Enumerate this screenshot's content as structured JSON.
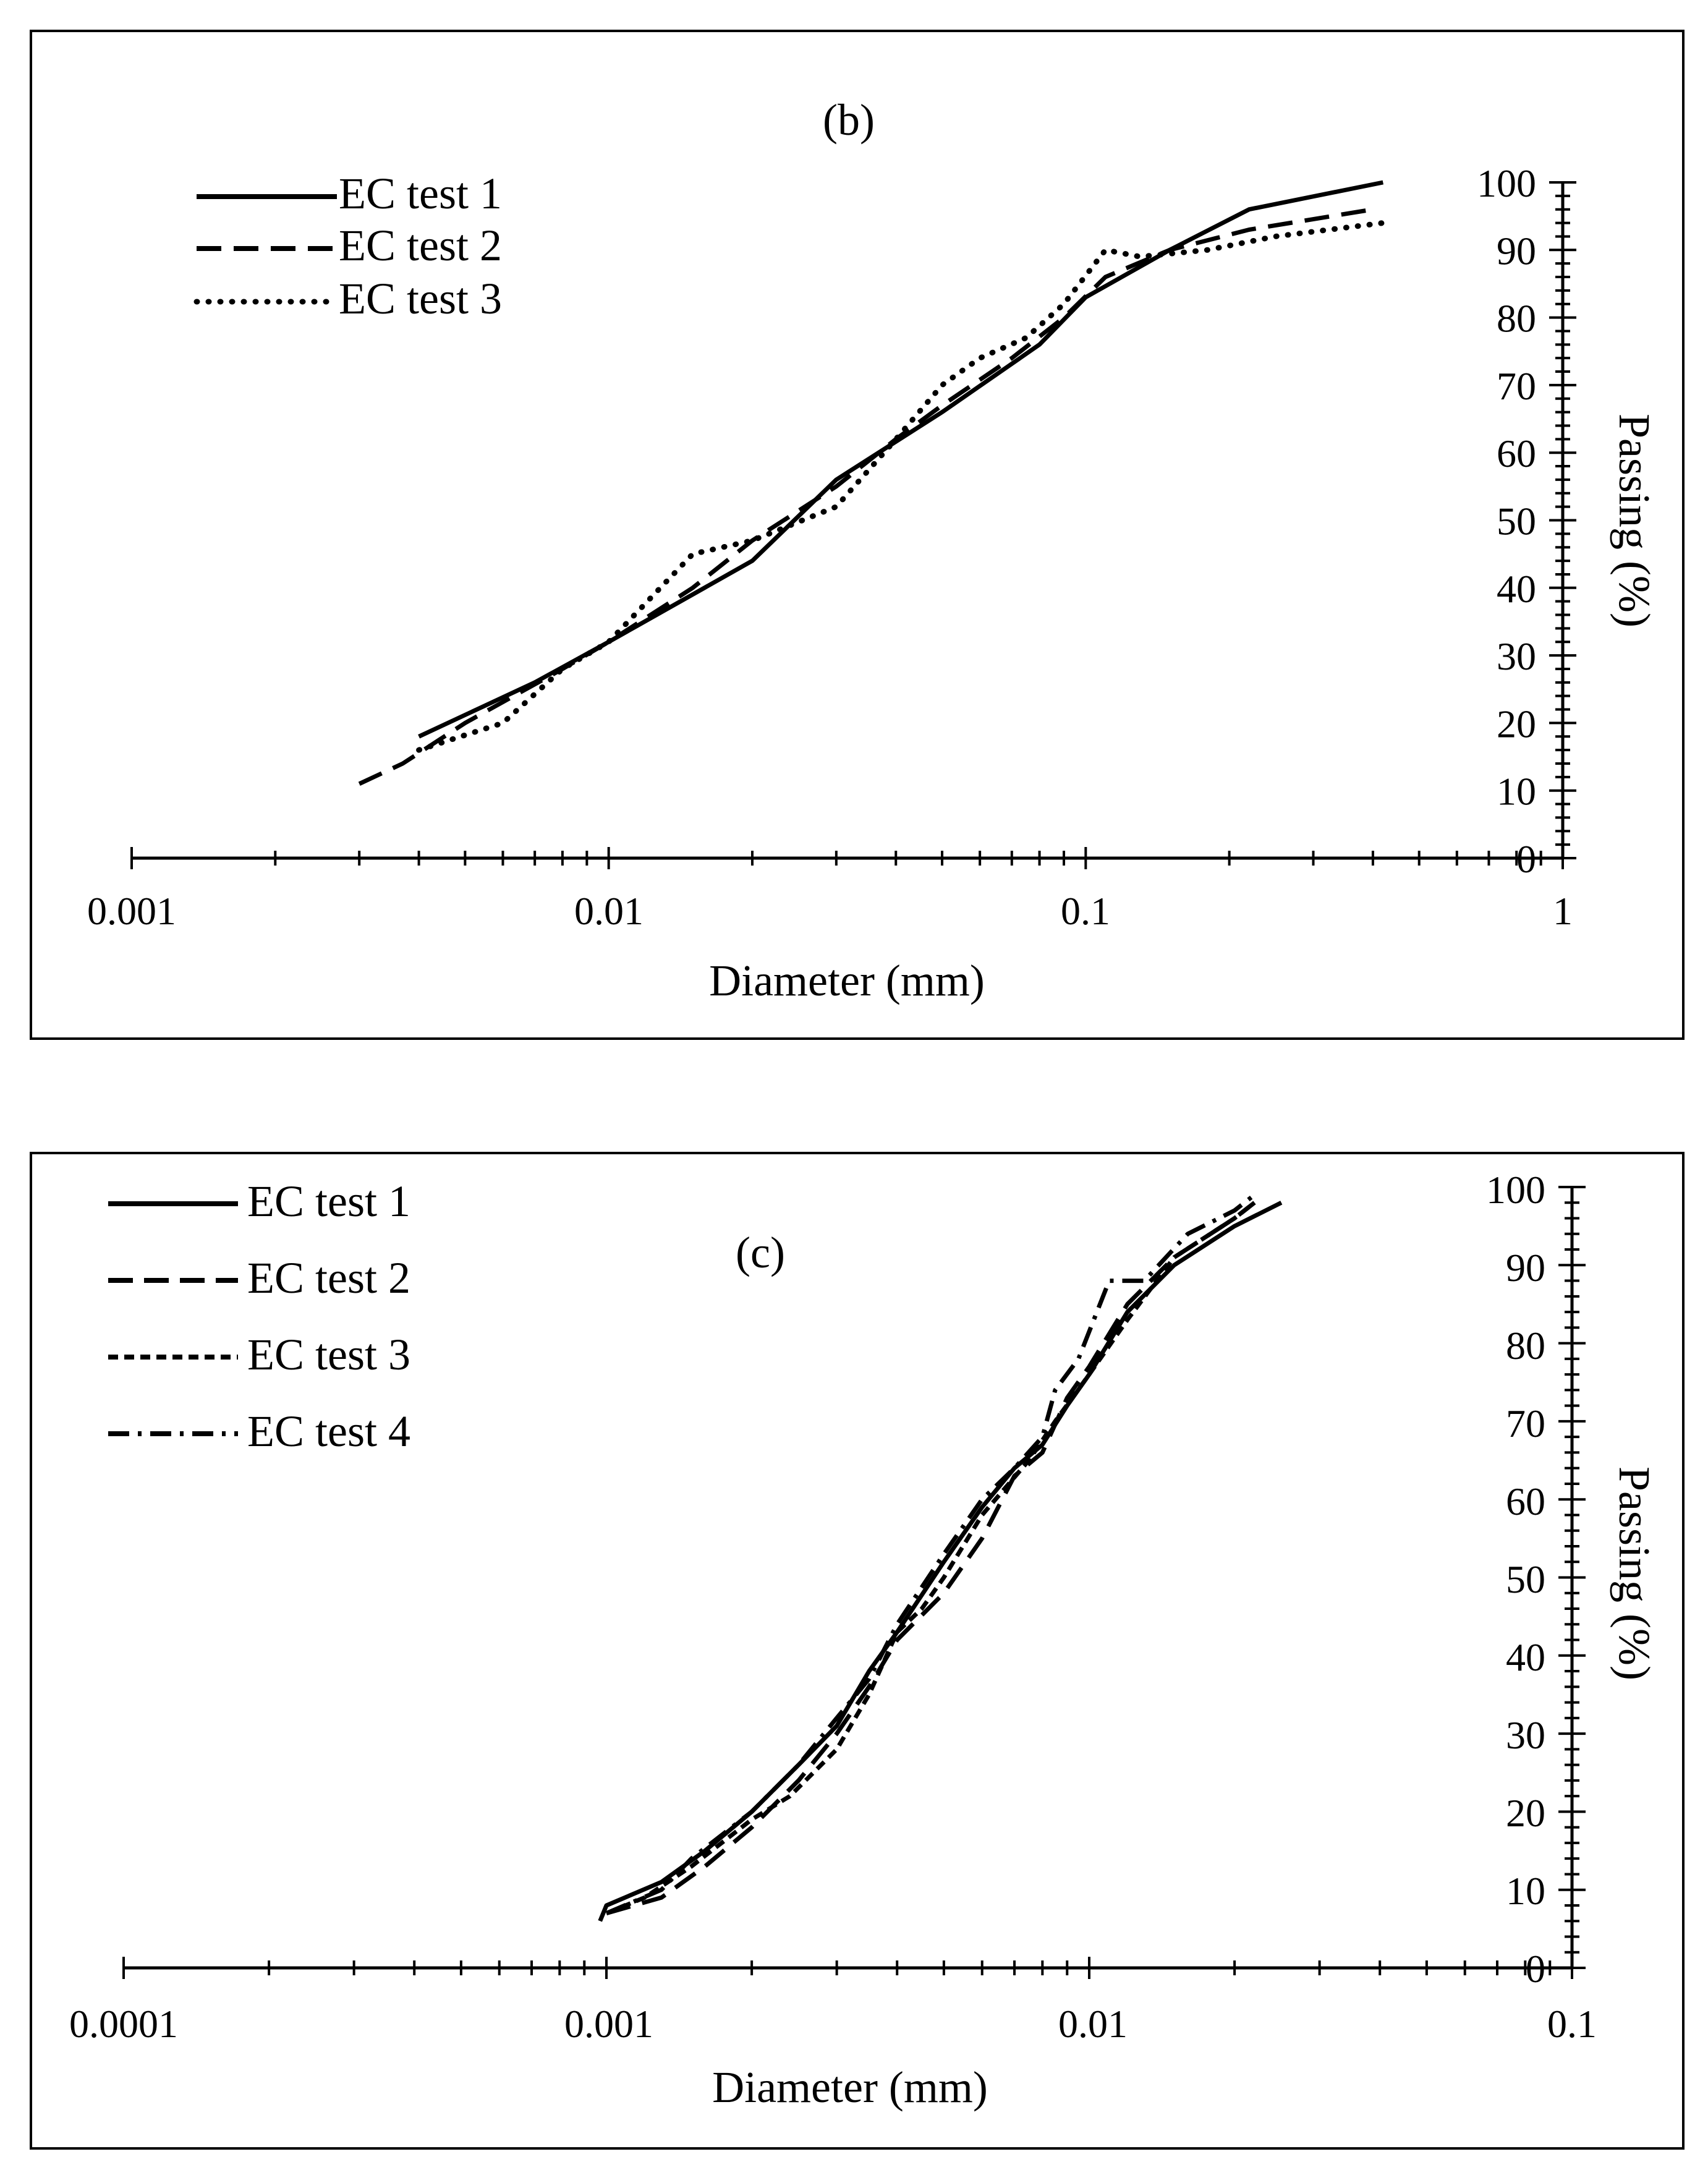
{
  "colors": {
    "ink": "#000000",
    "background": "#ffffff"
  },
  "chart_data": [
    {
      "panel_label": "(b)",
      "type": "line",
      "xscale": "log",
      "xlim": [
        0.001,
        1
      ],
      "ylim": [
        0,
        100
      ],
      "xlabel": "Diameter (mm)",
      "ylabel": "Passing (%)",
      "x_tick_labels": [
        "0.001",
        "0.01",
        "0.1",
        "1"
      ],
      "y_tick_labels": [
        "0",
        "10",
        "20",
        "30",
        "40",
        "50",
        "60",
        "70",
        "80",
        "90",
        "100"
      ],
      "legend_position": "top-left",
      "series": [
        {
          "name": "EC test 1",
          "style": "solid",
          "x": [
            0.004,
            0.007,
            0.01,
            0.02,
            0.03,
            0.05,
            0.08,
            0.1,
            0.15,
            0.22,
            0.42
          ],
          "y": [
            18,
            26,
            32,
            44,
            56,
            66,
            76,
            83,
            90,
            96,
            100
          ]
        },
        {
          "name": "EC test 2",
          "style": "dashed",
          "x": [
            0.003,
            0.0037,
            0.005,
            0.008,
            0.01,
            0.015,
            0.02,
            0.03,
            0.04,
            0.05,
            0.07,
            0.09,
            0.11,
            0.15,
            0.22,
            0.4
          ],
          "y": [
            11,
            14,
            20,
            28,
            32,
            40,
            47,
            55,
            62,
            67,
            74,
            80,
            86,
            90,
            93,
            96
          ]
        },
        {
          "name": "EC test 3",
          "style": "dotted",
          "x": [
            0.004,
            0.006,
            0.008,
            0.01,
            0.015,
            0.02,
            0.03,
            0.04,
            0.05,
            0.06,
            0.075,
            0.09,
            0.11,
            0.13,
            0.18,
            0.25,
            0.42
          ],
          "y": [
            16,
            20,
            28,
            32,
            45,
            47,
            52,
            62,
            70,
            74,
            77,
            82,
            90,
            89,
            90,
            92,
            94
          ]
        }
      ]
    },
    {
      "panel_label": "(c)",
      "type": "line",
      "xscale": "log",
      "xlim": [
        0.0001,
        0.1
      ],
      "ylim": [
        0,
        100
      ],
      "xlabel": "Diameter (mm)",
      "ylabel": "Passing (%)",
      "x_tick_labels": [
        "0.0001",
        "0.001",
        "0.01",
        "0.1"
      ],
      "y_tick_labels": [
        "0",
        "10",
        "20",
        "30",
        "40",
        "50",
        "60",
        "70",
        "80",
        "90",
        "100"
      ],
      "legend_position": "top-left",
      "series": [
        {
          "name": "EC test 1",
          "style": "solid",
          "x": [
            0.00097,
            0.001,
            0.0013,
            0.0016,
            0.002,
            0.0025,
            0.003,
            0.0035,
            0.004,
            0.005,
            0.006,
            0.007,
            0.008,
            0.009,
            0.01,
            0.012,
            0.015,
            0.02,
            0.025
          ],
          "y": [
            6,
            8,
            11,
            15,
            20,
            26,
            31,
            38,
            43,
            52,
            59,
            64,
            67,
            72,
            76,
            84,
            90,
            95,
            98
          ]
        },
        {
          "name": "EC test 2",
          "style": "dashed",
          "x": [
            0.001,
            0.0013,
            0.0016,
            0.002,
            0.0025,
            0.003,
            0.0035,
            0.004,
            0.005,
            0.006,
            0.007,
            0.008,
            0.009,
            0.01,
            0.012,
            0.015,
            0.02,
            0.022
          ],
          "y": [
            7,
            9,
            13,
            18,
            24,
            30,
            36,
            42,
            48,
            55,
            63,
            66,
            73,
            77,
            85,
            91,
            96,
            98
          ]
        },
        {
          "name": "EC test 3",
          "style": "short-dashed",
          "x": [
            0.001,
            0.0012,
            0.0015,
            0.002,
            0.0024,
            0.003,
            0.0035,
            0.004,
            0.0045,
            0.005,
            0.006,
            0.0075,
            0.0085,
            0.01,
            0.012,
            0.015,
            0.02,
            0.022
          ],
          "y": [
            7,
            9,
            13,
            19,
            22,
            28,
            35,
            43,
            46,
            50,
            58,
            65,
            70,
            76,
            83,
            91,
            96,
            98
          ]
        },
        {
          "name": "EC test 4",
          "style": "dash-dot",
          "x": [
            0.001,
            0.0013,
            0.0015,
            0.002,
            0.0025,
            0.003,
            0.0035,
            0.004,
            0.005,
            0.006,
            0.007,
            0.008,
            0.0085,
            0.0095,
            0.011,
            0.013,
            0.016,
            0.02,
            0.022
          ],
          "y": [
            7,
            10,
            14,
            20,
            26,
            32,
            37,
            44,
            53,
            60,
            64,
            68,
            74,
            78,
            88,
            88,
            94,
            97,
            99
          ]
        }
      ]
    }
  ]
}
